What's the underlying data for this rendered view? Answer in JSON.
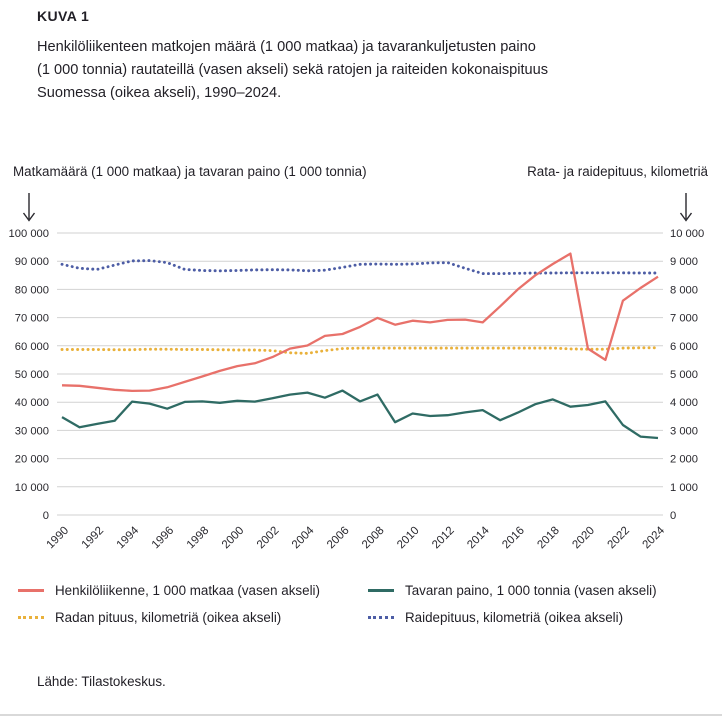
{
  "page": {
    "kicker": "KUVA 1",
    "title_lines": [
      "Henkilöliikenteen matkojen määrä (1 000 matkaa) ja tavarankuljetusten paino",
      "(1 000 tonnia) rautateillä (vasen akseli) sekä ratojen ja raiteiden kokonaispituus",
      "Suomessa (oikea akseli), 1990–2024."
    ],
    "source": "Lähde: Tilastokeskus."
  },
  "axis_headers": {
    "left": "Matkamäärä (1 000 matkaa) ja tavaran paino (1 000 tonnia)",
    "right": "Rata- ja raidepituus, kilometriä"
  },
  "colors": {
    "passenger": "#e8716a",
    "freight": "#2f6b64",
    "track_length": "#e9b13b",
    "rail_length": "#4d5da5",
    "grid": "#d2d2d2",
    "text": "#29282e"
  },
  "chart_data": {
    "type": "line",
    "title": "Henkilöliikenteen matkojen määrä ja tavarankuljetusten paino rautateillä sekä ratojen ja raiteiden kokonaispituus Suomessa, 1990–2024",
    "x": [
      1990,
      1991,
      1992,
      1993,
      1994,
      1995,
      1996,
      1997,
      1998,
      1999,
      2000,
      2001,
      2002,
      2003,
      2004,
      2005,
      2006,
      2007,
      2008,
      2009,
      2010,
      2011,
      2012,
      2013,
      2014,
      2015,
      2016,
      2017,
      2018,
      2019,
      2020,
      2021,
      2022,
      2023,
      2024
    ],
    "x_tick_labels": [
      "1990",
      "1992",
      "1994",
      "1996",
      "1998",
      "2000",
      "2002",
      "2004",
      "2006",
      "2008",
      "2010",
      "2012",
      "2014",
      "2016",
      "2018",
      "2020",
      "2022",
      "2024"
    ],
    "grid": true,
    "legend_position": "bottom",
    "left_axis": {
      "label": "Matkamäärä (1 000 matkaa) ja tavaran paino (1 000 tonnia)",
      "min": 0,
      "max": 100000,
      "tick_labels": [
        "0",
        "10 000",
        "20 000",
        "30 000",
        "40 000",
        "50 000",
        "60 000",
        "70 000",
        "80 000",
        "90 000",
        "100 000"
      ]
    },
    "right_axis": {
      "label": "Rata- ja raidepituus, kilometriä",
      "min": 0,
      "max": 10000,
      "tick_labels": [
        "0",
        "1 000",
        "2 000",
        "3 000",
        "4 000",
        "5 000",
        "6 000",
        "7 000",
        "8 000",
        "9 000",
        "10 000"
      ]
    },
    "series": [
      {
        "name": "Henkilöliikenne, 1 000 matkaa (vasen akseli)",
        "axis": "left",
        "style": "solid",
        "color": "#e8716a",
        "values": [
          46000,
          45800,
          45100,
          44400,
          44000,
          44100,
          45300,
          47200,
          49100,
          51100,
          52800,
          53800,
          56000,
          59000,
          60100,
          63500,
          64200,
          66700,
          69900,
          67500,
          68900,
          68300,
          69200,
          69300,
          68300,
          74000,
          80000,
          85000,
          89000,
          92700,
          59000,
          55000,
          76000,
          80500,
          84500
        ]
      },
      {
        "name": "Tavaran paino, 1 000 tonnia (vasen akseli)",
        "axis": "left",
        "style": "solid",
        "color": "#2f6b64",
        "values": [
          34700,
          31100,
          32300,
          33400,
          40200,
          39500,
          37700,
          40100,
          40300,
          39800,
          40500,
          40200,
          41400,
          42700,
          43400,
          41600,
          44100,
          40300,
          42700,
          32900,
          36000,
          35100,
          35400,
          36400,
          37200,
          33600,
          36300,
          39300,
          41000,
          38400,
          39000,
          40300,
          31900,
          27800,
          27300
        ]
      },
      {
        "name": "Radan pituus, kilometriä (oikea akseli)",
        "axis": "right",
        "style": "dotted",
        "color": "#e9b13b",
        "values": [
          5870,
          5870,
          5870,
          5860,
          5860,
          5880,
          5880,
          5870,
          5870,
          5860,
          5850,
          5850,
          5830,
          5750,
          5730,
          5830,
          5900,
          5920,
          5920,
          5920,
          5920,
          5920,
          5920,
          5920,
          5920,
          5920,
          5920,
          5920,
          5920,
          5890,
          5880,
          5880,
          5920,
          5930,
          5930
        ]
      },
      {
        "name": "Raidepituus, kilometriä (oikea akseli)",
        "axis": "right",
        "style": "dotted",
        "color": "#4d5da5",
        "values": [
          8890,
          8750,
          8710,
          8860,
          9010,
          9020,
          8950,
          8710,
          8670,
          8660,
          8670,
          8690,
          8700,
          8690,
          8660,
          8680,
          8780,
          8890,
          8900,
          8890,
          8900,
          8940,
          8950,
          8750,
          8560,
          8560,
          8570,
          8580,
          8580,
          8590,
          8590,
          8590,
          8590,
          8580,
          8580
        ]
      }
    ]
  }
}
